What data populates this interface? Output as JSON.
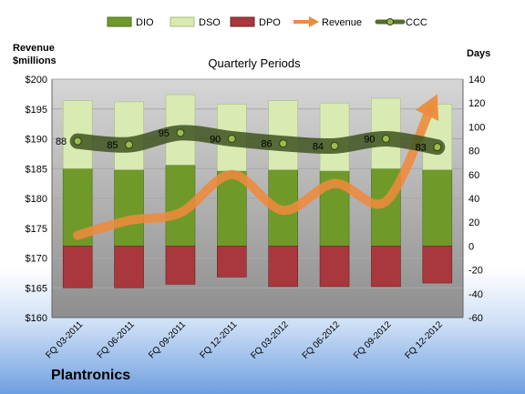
{
  "company": "Plantronics",
  "chart_data": {
    "type": "bar",
    "title": "Quarterly Periods",
    "ylabel_left": "Revenue\n$millions",
    "ylabel_right": "Days",
    "categories": [
      "FQ 03-2011",
      "FQ 06-2011",
      "FQ 09-2011",
      "FQ 12-2011",
      "FQ 03-2012",
      "FQ 06-2012",
      "FQ 09-2012",
      "FQ 12-2012"
    ],
    "left_axis": {
      "min": 160,
      "max": 200,
      "step": 5,
      "prefix": "$"
    },
    "right_axis": {
      "min": -60,
      "max": 140,
      "step": 20
    },
    "legend": [
      "DIO",
      "DSO",
      "DPO",
      "Revenue",
      "CCC"
    ],
    "legend_position": "top",
    "series": [
      {
        "name": "DIO",
        "type": "bar-stacked",
        "axis": "right",
        "color": "#6f9a2a",
        "values": [
          65,
          64,
          68,
          63,
          64,
          63,
          65,
          64
        ]
      },
      {
        "name": "DSO",
        "type": "bar-stacked",
        "axis": "right",
        "color": "#d9eab3",
        "values": [
          57,
          57,
          59,
          56,
          58,
          57,
          59,
          55
        ]
      },
      {
        "name": "DPO",
        "type": "bar-negative",
        "axis": "right",
        "color": "#a8383d",
        "values": [
          -35,
          -35,
          -32,
          -26,
          -34,
          -34,
          -34,
          -31
        ]
      },
      {
        "name": "Revenue",
        "type": "line-arrow",
        "axis": "left",
        "color": "#ee8a3c",
        "values": [
          173.8,
          176.3,
          177.6,
          184.0,
          178.0,
          182.5,
          179.5,
          197.5
        ]
      },
      {
        "name": "CCC",
        "type": "line",
        "axis": "right",
        "color": "#556b2f",
        "values": [
          88,
          85,
          95,
          90,
          86,
          84,
          90,
          83
        ]
      }
    ],
    "ccc_labels": [
      "88",
      "85",
      "95",
      "90",
      "86",
      "84",
      "90",
      "83"
    ]
  }
}
